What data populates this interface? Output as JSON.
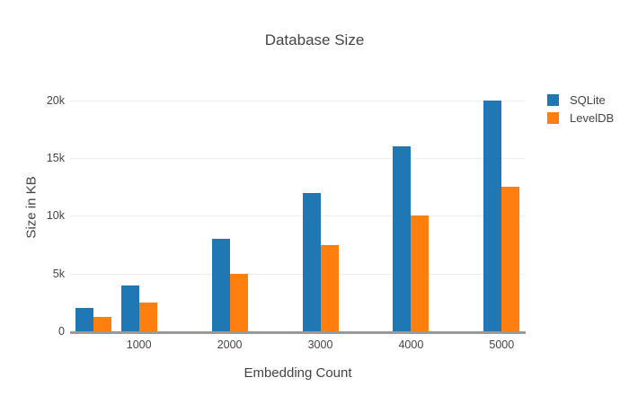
{
  "chart_data": {
    "type": "bar",
    "title": "Database Size",
    "xlabel": "Embedding Count",
    "ylabel": "Size in KB",
    "x": [
      500,
      1000,
      2000,
      3000,
      4000,
      5000
    ],
    "series": [
      {
        "name": "SQLite",
        "color": "#1f77b4",
        "values": [
          2000,
          4000,
          8000,
          12000,
          16000,
          20000
        ]
      },
      {
        "name": "LevelDB",
        "color": "#ff7f0e",
        "values": [
          1250,
          2500,
          5000,
          7500,
          10000,
          12500
        ]
      }
    ],
    "xticks": [
      {
        "value": 1000,
        "label": "1000"
      },
      {
        "value": 2000,
        "label": "2000"
      },
      {
        "value": 3000,
        "label": "3000"
      },
      {
        "value": 4000,
        "label": "4000"
      },
      {
        "value": 5000,
        "label": "5000"
      }
    ],
    "yticks": [
      {
        "value": 0,
        "label": "0"
      },
      {
        "value": 5000,
        "label": "5k"
      },
      {
        "value": 10000,
        "label": "10k"
      },
      {
        "value": 15000,
        "label": "15k"
      },
      {
        "value": 20000,
        "label": "20k"
      }
    ],
    "xlim": [
      240,
      5265
    ],
    "ylim": [
      0,
      21763
    ],
    "grid": true,
    "legend_position": "top-right",
    "colors": {
      "text": "#444444",
      "axis_line": "#999999",
      "gridline": "#eeeeee",
      "background": "#ffffff"
    }
  }
}
